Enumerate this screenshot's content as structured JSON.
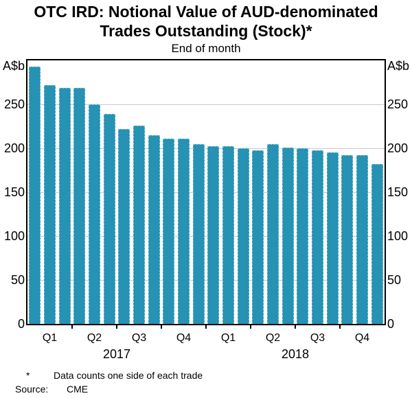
{
  "title": {
    "line1": "OTC IRD: Notional Value of AUD-denominated",
    "line2": "Trades Outstanding (Stock)*"
  },
  "subtitle": "End of month",
  "footnote": {
    "marker": "*",
    "text": "Data counts one side of each trade"
  },
  "source": {
    "label": "Source:",
    "value": "CME"
  },
  "chart_data": {
    "type": "bar",
    "title": "OTC IRD: Notional Value of AUD-denominated Trades Outstanding (Stock)*",
    "subtitle": "End of month",
    "unit_label": "A$b",
    "x": [
      "2017-01",
      "2017-02",
      "2017-03",
      "2017-04",
      "2017-05",
      "2017-06",
      "2017-07",
      "2017-08",
      "2017-09",
      "2017-10",
      "2017-11",
      "2017-12",
      "2018-01",
      "2018-02",
      "2018-03",
      "2018-04",
      "2018-05",
      "2018-06",
      "2018-07",
      "2018-08",
      "2018-09",
      "2018-10",
      "2018-11",
      "2018-12"
    ],
    "values": [
      293,
      272,
      269,
      269,
      250,
      239,
      222,
      226,
      215,
      211,
      211,
      205,
      202,
      202,
      200,
      198,
      205,
      201,
      200,
      198,
      195,
      192,
      192,
      182
    ],
    "quarter_labels": [
      "Q1",
      "Q2",
      "Q3",
      "Q4",
      "Q1",
      "Q2",
      "Q3",
      "Q4"
    ],
    "year_labels": [
      "2017",
      "2018"
    ],
    "ylim": [
      0,
      300
    ],
    "yticks": [
      0,
      50,
      100,
      150,
      200,
      250
    ],
    "grid": "horizontal",
    "legend": "none",
    "bar_color": "#2692b4",
    "grid_color": "#c9c9c9",
    "frame_color": "#000000"
  }
}
